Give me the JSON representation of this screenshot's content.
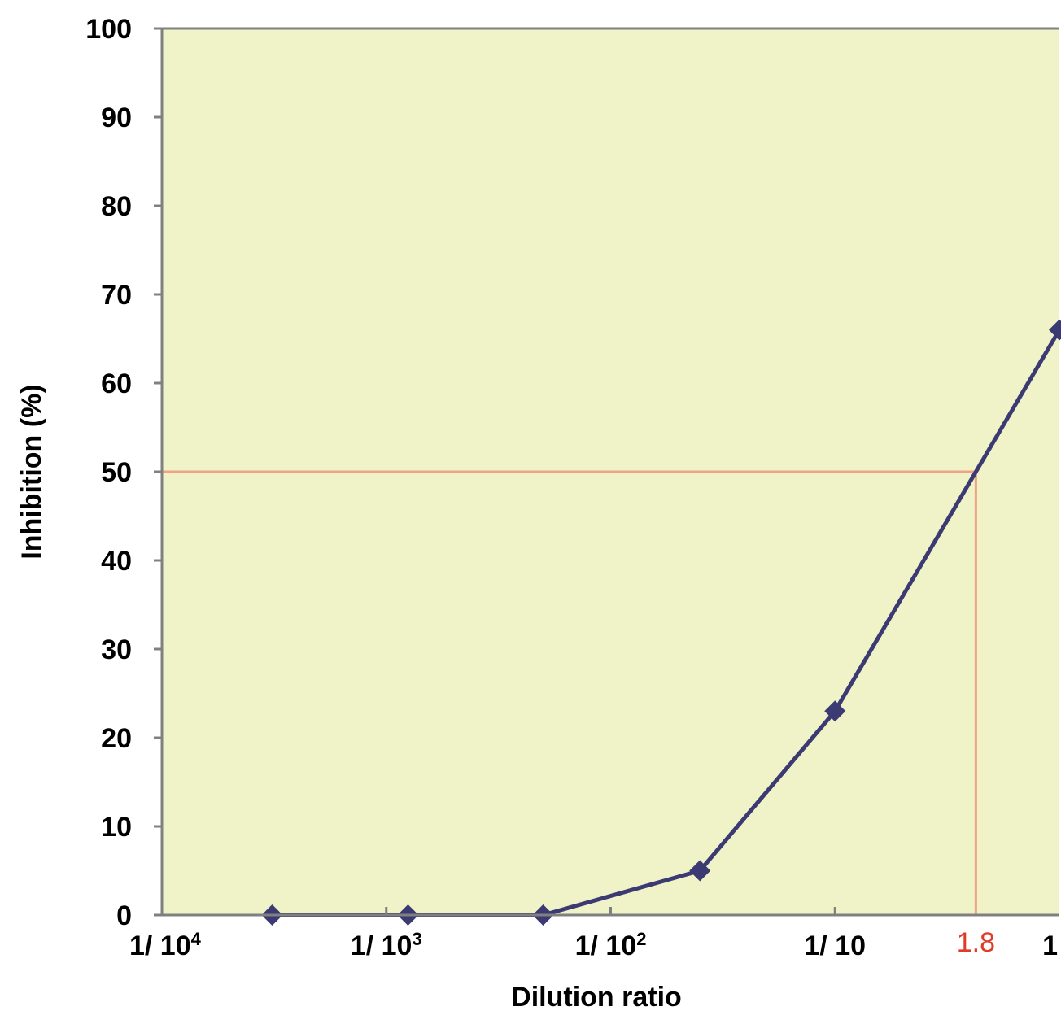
{
  "chart_data": {
    "type": "line",
    "title": "",
    "xlabel": "Dilution ratio",
    "ylabel": "Inhibition (%)",
    "x_scale": "log",
    "xlim": [
      0.0001,
      1
    ],
    "ylim": [
      0,
      100
    ],
    "y_ticks": [
      0,
      10,
      20,
      30,
      40,
      50,
      60,
      70,
      80,
      90,
      100
    ],
    "x_ticks": [
      {
        "value": 0.0001,
        "base": "1/ 10",
        "exp": "4"
      },
      {
        "value": 0.001,
        "base": "1/ 10",
        "exp": "3"
      },
      {
        "value": 0.01,
        "base": "1/ 10",
        "exp": "2"
      },
      {
        "value": 0.1,
        "base": "1/ 10",
        "exp": ""
      },
      {
        "value": 1,
        "base": "1",
        "exp": ""
      }
    ],
    "grid": false,
    "series": [
      {
        "points": [
          {
            "x": 0.00031,
            "y": 0
          },
          {
            "x": 0.00125,
            "y": 0
          },
          {
            "x": 0.005,
            "y": 0
          },
          {
            "x": 0.025,
            "y": 5
          },
          {
            "x": 0.1,
            "y": 23
          },
          {
            "x": 1,
            "y": 66
          }
        ]
      }
    ],
    "reference": {
      "y": 50,
      "x_label": "1.8"
    },
    "colors": {
      "plot_background": "#F0F2C7",
      "line": "#3C3A73",
      "marker": "#3C3A73",
      "reference": "#F0A288",
      "reference_label": "#E03A2A",
      "axis": "#808080"
    }
  }
}
